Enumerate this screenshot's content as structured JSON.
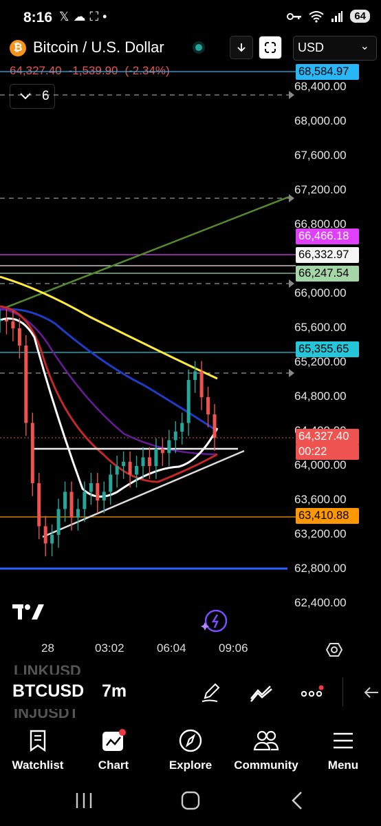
{
  "status_bar": {
    "time": "8:16",
    "battery": "64",
    "left_icons": [
      "x-icon",
      "cloud-icon",
      "screenshot-icon",
      "dot-icon"
    ],
    "right_icons": [
      "key-icon",
      "wifi-icon",
      "signal-icon",
      "battery-icon"
    ]
  },
  "header": {
    "symbol_title": "Bitcoin / U.S. Dollar",
    "currency": "USD",
    "last_price": "64,327.40",
    "change": "-1,539.90",
    "change_pct": "(-2.34%)",
    "indicators_count": "6"
  },
  "price_axis": {
    "labels": [
      "68,400.00",
      "68,000.00",
      "67,600.00",
      "67,200.00",
      "66,800.00",
      "66,000.00",
      "65,600.00",
      "65,200.00",
      "64,800.00",
      "64,400.00",
      "64,000.00",
      "63,600.00",
      "63,200.00",
      "62,800.00",
      "62,400.00"
    ],
    "tags": [
      {
        "value": "68,584.97",
        "bg": "#29b6f6",
        "fg": "#000"
      },
      {
        "value": "66,466.18",
        "bg": "#e040fb",
        "fg": "#fff"
      },
      {
        "value": "66,332.97",
        "bg": "#f5f5f5",
        "fg": "#000"
      },
      {
        "value": "66,247.54",
        "bg": "#a5d6a7",
        "fg": "#000"
      },
      {
        "value": "65,355.65",
        "bg": "#26c6da",
        "fg": "#000"
      },
      {
        "value": "64,327.40",
        "bg": "#ef5350",
        "fg": "#fff"
      },
      {
        "value": "00:22",
        "bg": "#ef5350",
        "fg": "#fff"
      },
      {
        "value": "63,410.88",
        "bg": "#ff9800",
        "fg": "#000"
      }
    ]
  },
  "time_axis": {
    "labels": [
      "28",
      "03:02",
      "06:04",
      "09:06"
    ]
  },
  "chart_data": {
    "type": "candlestick",
    "symbol": "BTCUSD",
    "interval": "7m",
    "last": 64327.4,
    "ylim": [
      62200,
      68700
    ],
    "horizontal_levels": [
      68584.97,
      66466.18,
      66332.97,
      66247.54,
      65355.65,
      63410.88,
      62780
    ],
    "series": [
      {
        "name": "close",
        "values": [
          65700,
          65680,
          65600,
          65400,
          64500,
          63800,
          63300,
          63100,
          63200,
          63500,
          63700,
          63400,
          63500,
          63700,
          63800,
          63600,
          63700,
          63900,
          64000,
          64050,
          63900,
          64000,
          64100,
          64000,
          64200,
          64150,
          64300,
          64400,
          64500,
          65000,
          65100,
          64800,
          64600,
          64327.4
        ]
      }
    ]
  },
  "bottom_symbols": {
    "prev": "LINKUSD",
    "current": "BTCUSD",
    "next": "INJUSDT",
    "interval": "7m"
  },
  "nav": {
    "items": [
      {
        "label": "Watchlist",
        "icon": "bookmark-icon"
      },
      {
        "label": "Chart",
        "icon": "chart-icon"
      },
      {
        "label": "Explore",
        "icon": "compass-icon"
      },
      {
        "label": "Community",
        "icon": "people-icon"
      },
      {
        "label": "Menu",
        "icon": "menu-icon"
      }
    ]
  }
}
